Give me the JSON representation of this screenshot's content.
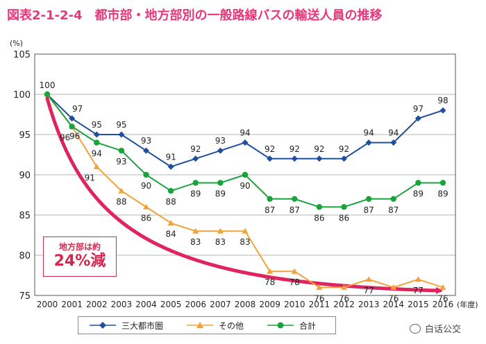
{
  "title": "図表2-1-2-4　都市部・地方部別の一般路線バスの輸送人員の推移",
  "annotation": {
    "line1": "地方部は約",
    "line2": "24%減"
  },
  "watermark": "白话公交",
  "chart_data": {
    "type": "line",
    "ylabel": "(%)",
    "xlabel": "(年度)",
    "ylim": [
      75,
      105
    ],
    "yticks": [
      75,
      80,
      85,
      90,
      95,
      100,
      105
    ],
    "x": [
      "2000",
      "2001",
      "2002",
      "2003",
      "2004",
      "2005",
      "2006",
      "2007",
      "2008",
      "2009",
      "2010",
      "2011",
      "2012",
      "2013",
      "2014",
      "2015",
      "2016"
    ],
    "grid": true,
    "legend_position": "bottom",
    "series": [
      {
        "name": "三大都市圏",
        "color": "#1f4e9c",
        "marker": "diamond",
        "values": [
          100,
          97,
          95,
          95,
          93,
          91,
          92,
          93,
          94,
          92,
          92,
          92,
          92,
          94,
          94,
          97,
          98
        ]
      },
      {
        "name": "その他",
        "color": "#f2a23a",
        "marker": "triangle",
        "values": [
          100,
          96,
          91,
          88,
          86,
          84,
          83,
          83,
          83,
          78,
          78,
          76,
          76,
          77,
          76,
          77,
          76
        ]
      },
      {
        "name": "合計",
        "color": "#1aa33a",
        "marker": "circle",
        "values": [
          100,
          96,
          94,
          93,
          90,
          88,
          89,
          89,
          90,
          87,
          87,
          86,
          86,
          87,
          87,
          89,
          89
        ]
      }
    ],
    "trend_arrow_color": "#e0245e"
  }
}
